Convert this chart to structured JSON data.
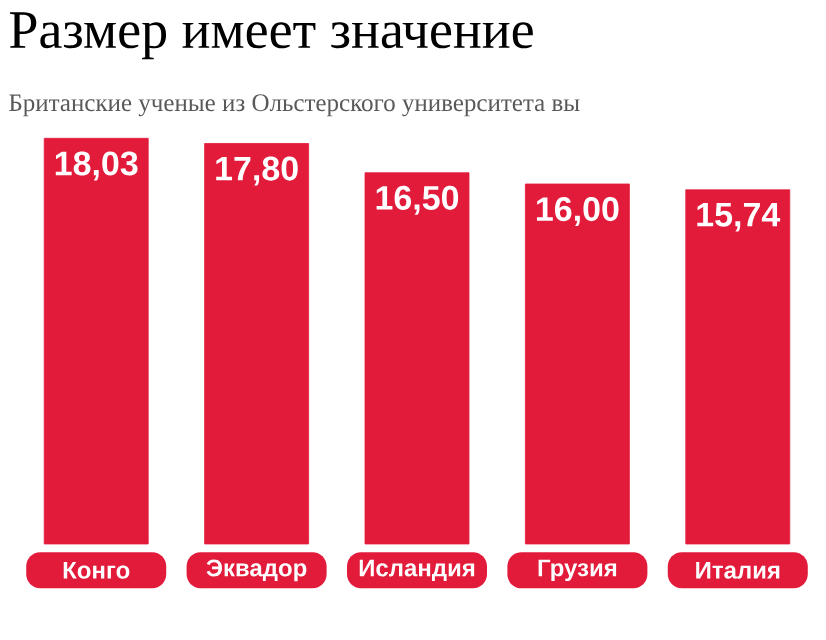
{
  "chart_data": {
    "type": "bar",
    "title": "Размер имеет значение",
    "subtitle": "Британские ученые из Ольстерского университета вы",
    "categories": [
      "Конго",
      "Эквадор",
      "Исландия",
      "Грузия",
      "Италия"
    ],
    "values": [
      18.03,
      17.8,
      16.5,
      16.0,
      15.74
    ],
    "value_labels": [
      "18,03",
      "17,80",
      "16,50",
      "16,00",
      "15,74"
    ],
    "color": "#e31b3b"
  }
}
